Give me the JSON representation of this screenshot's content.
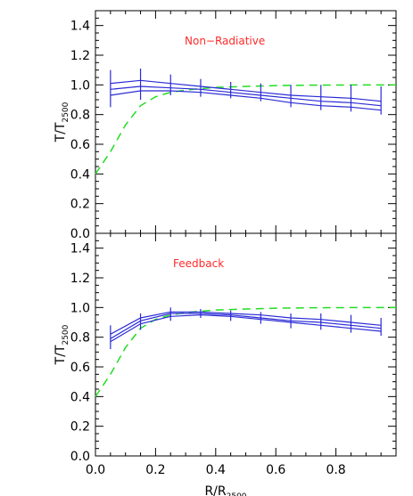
{
  "chart_data": [
    {
      "type": "line",
      "annotation": "Non−Radiative",
      "annotation_color": "#ff2a2a",
      "xlabel": "R/R",
      "xlabel_sub": "2500",
      "ylabel": "T/T",
      "ylabel_sub": "2500",
      "xlim": [
        0.0,
        1.0
      ],
      "ylim": [
        0.0,
        1.5
      ],
      "xticks": [
        "0.0",
        "0.2",
        "0.4",
        "0.6",
        "0.8"
      ],
      "yticks": [
        "0.0",
        "0.2",
        "0.4",
        "0.6",
        "0.8",
        "1.0",
        "1.2",
        "1.4"
      ],
      "x": [
        0.05,
        0.15,
        0.25,
        0.35,
        0.45,
        0.55,
        0.65,
        0.75,
        0.85,
        0.95
      ],
      "series": [
        {
          "color": "#2a2ad6",
          "values": [
            1.01,
            1.03,
            1.01,
            0.99,
            0.97,
            0.95,
            0.93,
            0.92,
            0.91,
            0.89
          ]
        },
        {
          "color": "#2a2ad6",
          "values": [
            0.97,
            0.99,
            0.98,
            0.97,
            0.95,
            0.93,
            0.91,
            0.89,
            0.88,
            0.86
          ]
        },
        {
          "color": "#2a2ad6",
          "values": [
            0.93,
            0.96,
            0.96,
            0.95,
            0.93,
            0.91,
            0.88,
            0.86,
            0.85,
            0.83
          ]
        }
      ],
      "error_bars": {
        "color": "#2a2ad6",
        "low": [
          0.85,
          0.9,
          0.93,
          0.92,
          0.91,
          0.89,
          0.85,
          0.83,
          0.82,
          0.8
        ],
        "high": [
          1.1,
          1.11,
          1.07,
          1.04,
          1.02,
          1.01,
          1.0,
          1.0,
          1.0,
          0.99
        ]
      },
      "reference": {
        "color": "#22dd22",
        "style": "dashed",
        "x": [
          0.0,
          0.05,
          0.1,
          0.15,
          0.2,
          0.25,
          0.3,
          0.35,
          0.4,
          0.5,
          0.6,
          0.7,
          0.8,
          0.9,
          1.0
        ],
        "values": [
          0.4,
          0.55,
          0.73,
          0.86,
          0.92,
          0.95,
          0.965,
          0.975,
          0.983,
          0.99,
          0.995,
          0.998,
          0.999,
          1.0,
          1.0
        ]
      }
    },
    {
      "type": "line",
      "annotation": "Feedback",
      "annotation_color": "#ff2a2a",
      "xlabel": "R/R",
      "xlabel_sub": "2500",
      "ylabel": "T/T",
      "ylabel_sub": "2500",
      "xlim": [
        0.0,
        1.0
      ],
      "ylim": [
        0.0,
        1.5
      ],
      "xticks": [
        "0.0",
        "0.2",
        "0.4",
        "0.6",
        "0.8"
      ],
      "yticks": [
        "0.0",
        "0.2",
        "0.4",
        "0.6",
        "0.8",
        "1.0",
        "1.2",
        "1.4"
      ],
      "x": [
        0.05,
        0.15,
        0.25,
        0.35,
        0.45,
        0.55,
        0.65,
        0.75,
        0.85,
        0.95
      ],
      "series": [
        {
          "color": "#2a2ad6",
          "values": [
            0.82,
            0.93,
            0.97,
            0.97,
            0.96,
            0.95,
            0.93,
            0.92,
            0.9,
            0.88
          ]
        },
        {
          "color": "#2a2ad6",
          "values": [
            0.79,
            0.91,
            0.96,
            0.96,
            0.95,
            0.93,
            0.91,
            0.9,
            0.88,
            0.86
          ]
        },
        {
          "color": "#2a2ad6",
          "values": [
            0.77,
            0.89,
            0.94,
            0.95,
            0.94,
            0.92,
            0.9,
            0.88,
            0.86,
            0.84
          ]
        }
      ],
      "error_bars": {
        "color": "#2a2ad6",
        "low": [
          0.72,
          0.85,
          0.91,
          0.93,
          0.91,
          0.89,
          0.86,
          0.85,
          0.83,
          0.81
        ],
        "high": [
          0.88,
          0.96,
          1.0,
          0.99,
          0.98,
          0.97,
          0.96,
          0.96,
          0.95,
          0.93
        ]
      },
      "reference": {
        "color": "#22dd22",
        "style": "dashed",
        "x": [
          0.0,
          0.05,
          0.1,
          0.15,
          0.2,
          0.25,
          0.3,
          0.35,
          0.4,
          0.5,
          0.6,
          0.7,
          0.8,
          0.9,
          1.0
        ],
        "values": [
          0.4,
          0.55,
          0.73,
          0.86,
          0.92,
          0.95,
          0.965,
          0.975,
          0.983,
          0.99,
          0.995,
          0.998,
          0.999,
          1.0,
          1.0
        ]
      }
    }
  ]
}
